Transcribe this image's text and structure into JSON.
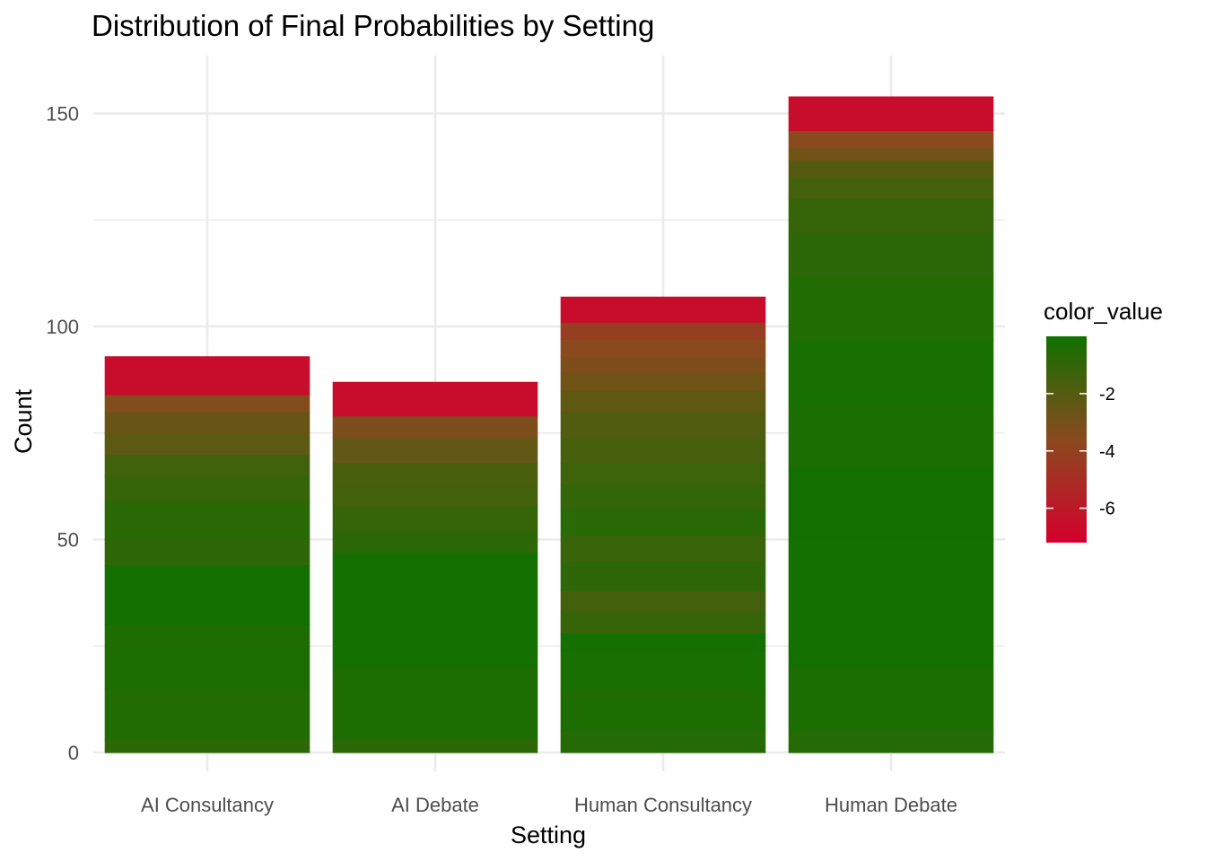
{
  "chart_data": {
    "type": "bar",
    "title": "Distribution of Final Probabilities by Setting",
    "xlabel": "Setting",
    "ylabel": "Count",
    "categories": [
      "AI Consultancy",
      "AI Debate",
      "Human Consultancy",
      "Human Debate"
    ],
    "values": [
      93,
      87,
      107,
      154
    ],
    "ylim": [
      0,
      160
    ],
    "yticks": [
      0,
      50,
      100,
      150
    ],
    "grid": true,
    "fill_gradient": {
      "name": "color_value",
      "low_color": "#d4002d",
      "mid_color": "#8a4a1e",
      "high_color": "#117100",
      "range": [
        -7.2,
        0
      ],
      "ticks": [
        -2,
        -4,
        -6
      ]
    },
    "stacks": [
      {
        "category": "AI Consultancy",
        "segments": [
          {
            "from": 0,
            "to": 3,
            "value": -0.8
          },
          {
            "from": 3,
            "to": 15,
            "value": -0.5
          },
          {
            "from": 15,
            "to": 30,
            "value": -0.4
          },
          {
            "from": 30,
            "to": 44,
            "value": -0.1
          },
          {
            "from": 44,
            "to": 50,
            "value": -0.9
          },
          {
            "from": 50,
            "to": 59,
            "value": -0.7
          },
          {
            "from": 59,
            "to": 65,
            "value": -1.1
          },
          {
            "from": 65,
            "to": 70,
            "value": -1.4
          },
          {
            "from": 70,
            "to": 75,
            "value": -2.2
          },
          {
            "from": 75,
            "to": 80,
            "value": -2.6
          },
          {
            "from": 80,
            "to": 84,
            "value": -3.4
          },
          {
            "from": 84,
            "to": 93,
            "value": -6.6
          }
        ]
      },
      {
        "category": "AI Debate",
        "segments": [
          {
            "from": 0,
            "to": 3,
            "value": -0.8
          },
          {
            "from": 3,
            "to": 20,
            "value": -0.4
          },
          {
            "from": 20,
            "to": 47,
            "value": -0.1
          },
          {
            "from": 47,
            "to": 52,
            "value": -0.8
          },
          {
            "from": 52,
            "to": 58,
            "value": -1.1
          },
          {
            "from": 58,
            "to": 63,
            "value": -1.5
          },
          {
            "from": 63,
            "to": 68,
            "value": -1.7
          },
          {
            "from": 68,
            "to": 74,
            "value": -2.4
          },
          {
            "from": 74,
            "to": 79,
            "value": -3.2
          },
          {
            "from": 79,
            "to": 87,
            "value": -6.6
          }
        ]
      },
      {
        "category": "Human Consultancy",
        "segments": [
          {
            "from": 0,
            "to": 5,
            "value": -0.6
          },
          {
            "from": 5,
            "to": 15,
            "value": -0.4
          },
          {
            "from": 15,
            "to": 24,
            "value": -0.2
          },
          {
            "from": 24,
            "to": 28,
            "value": -0.1
          },
          {
            "from": 28,
            "to": 33,
            "value": -1.1
          },
          {
            "from": 33,
            "to": 38,
            "value": -1.5
          },
          {
            "from": 38,
            "to": 45,
            "value": -0.9
          },
          {
            "from": 45,
            "to": 51,
            "value": -1.2
          },
          {
            "from": 51,
            "to": 57,
            "value": -0.7
          },
          {
            "from": 57,
            "to": 63,
            "value": -1.0
          },
          {
            "from": 63,
            "to": 68,
            "value": -1.3
          },
          {
            "from": 68,
            "to": 74,
            "value": -1.6
          },
          {
            "from": 74,
            "to": 80,
            "value": -1.9
          },
          {
            "from": 80,
            "to": 85,
            "value": -2.3
          },
          {
            "from": 85,
            "to": 89,
            "value": -2.8
          },
          {
            "from": 89,
            "to": 93,
            "value": -3.2
          },
          {
            "from": 93,
            "to": 97,
            "value": -3.6
          },
          {
            "from": 97,
            "to": 101,
            "value": -4.2
          },
          {
            "from": 101,
            "to": 107,
            "value": -6.6
          }
        ]
      },
      {
        "category": "Human Debate",
        "segments": [
          {
            "from": 0,
            "to": 5,
            "value": -0.6
          },
          {
            "from": 5,
            "to": 20,
            "value": -0.3
          },
          {
            "from": 20,
            "to": 50,
            "value": -0.1
          },
          {
            "from": 50,
            "to": 67,
            "value": -0.05
          },
          {
            "from": 67,
            "to": 82,
            "value": -0.3
          },
          {
            "from": 82,
            "to": 97,
            "value": -0.2
          },
          {
            "from": 97,
            "to": 112,
            "value": -0.5
          },
          {
            "from": 112,
            "to": 122,
            "value": -0.8
          },
          {
            "from": 122,
            "to": 130,
            "value": -1.1
          },
          {
            "from": 130,
            "to": 135,
            "value": -1.5
          },
          {
            "from": 135,
            "to": 139,
            "value": -2.0
          },
          {
            "from": 139,
            "to": 142,
            "value": -2.8
          },
          {
            "from": 142,
            "to": 146,
            "value": -3.6
          },
          {
            "from": 146,
            "to": 154,
            "value": -6.6
          }
        ]
      }
    ]
  }
}
